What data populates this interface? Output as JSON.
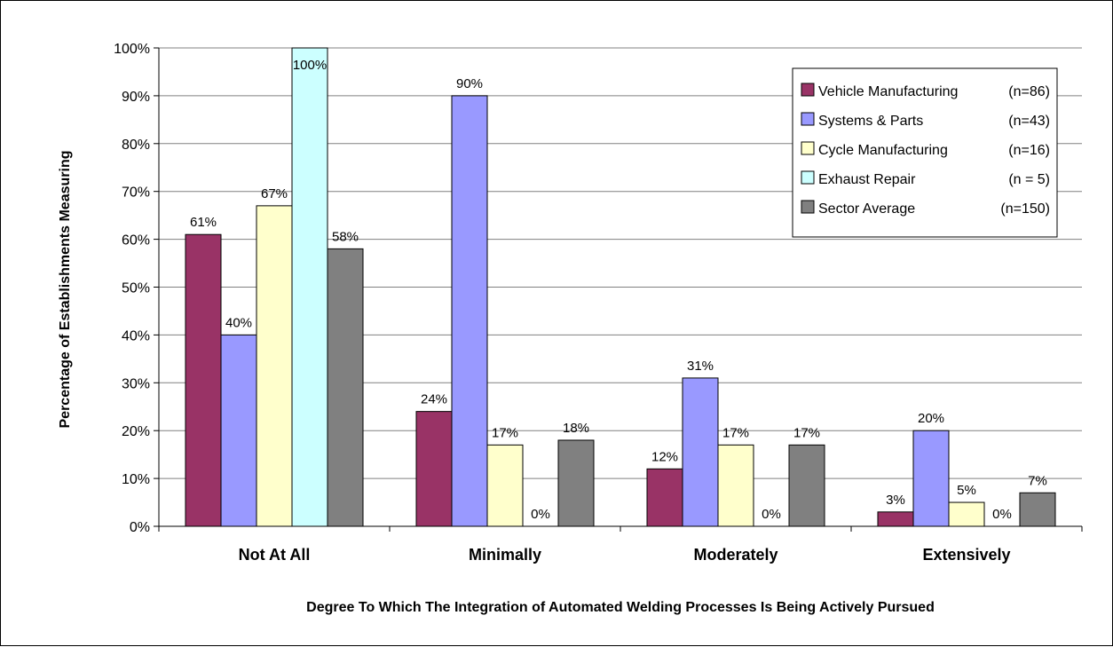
{
  "chart_data": {
    "type": "bar",
    "categories": [
      "Not At All",
      "Minimally",
      "Moderately",
      "Extensively"
    ],
    "series": [
      {
        "name": "Vehicle Manufacturing",
        "n_label": "(n=86)",
        "color": "#993366",
        "values": [
          61,
          24,
          12,
          3
        ],
        "labels": [
          "61%",
          "24%",
          "12%",
          "3%"
        ]
      },
      {
        "name": "Systems & Parts",
        "n_label": "(n=43)",
        "color": "#9999ff",
        "values": [
          40,
          90,
          31,
          20
        ],
        "labels": [
          "40%",
          "90%",
          "31%",
          "20%"
        ]
      },
      {
        "name": "Cycle Manufacturing",
        "n_label": "(n=16)",
        "color": "#ffffcc",
        "values": [
          67,
          17,
          17,
          5
        ],
        "labels": [
          "67%",
          "17%",
          "17%",
          "5%"
        ]
      },
      {
        "name": "Exhaust Repair",
        "n_label": "(n = 5)",
        "color": "#ccffff",
        "values": [
          100,
          0,
          0,
          0
        ],
        "labels": [
          "100%",
          "0%",
          "0%",
          "0%"
        ]
      },
      {
        "name": "Sector Average",
        "n_label": "(n=150)",
        "color": "#808080",
        "values": [
          58,
          18,
          17,
          7
        ],
        "labels": [
          "58%",
          "18%",
          "17%",
          "7%"
        ]
      }
    ],
    "xlabel": "Degree To Which The Integration of Automated Welding Processes Is Being Actively Pursued",
    "ylabel": "Percentage of Establishments Measuring",
    "ylim": [
      0,
      100
    ],
    "yticks": [
      "0%",
      "10%",
      "20%",
      "30%",
      "40%",
      "50%",
      "60%",
      "70%",
      "80%",
      "90%",
      "100%"
    ],
    "grid": true,
    "legend_position": "top-right"
  }
}
